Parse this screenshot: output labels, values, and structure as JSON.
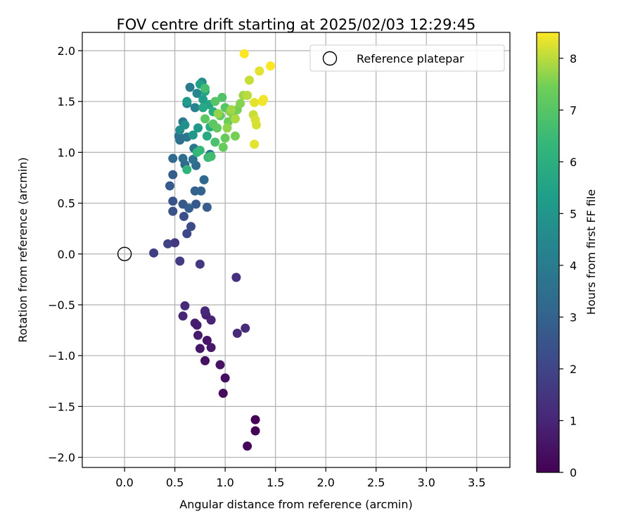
{
  "chart_data": {
    "type": "scatter",
    "title": "FOV centre drift starting at 2025/02/03 12:29:45",
    "xlabel": "Angular distance from reference (arcmin)",
    "ylabel": "Rotation from reference (arcmin)",
    "xlim": [
      -0.42,
      3.83
    ],
    "ylim": [
      -2.1,
      2.18
    ],
    "xticks": [
      "0.0",
      "0.5",
      "1.0",
      "1.5",
      "2.0",
      "2.5",
      "3.0",
      "3.5"
    ],
    "xtick_values": [
      0,
      0.5,
      1.0,
      1.5,
      2.0,
      2.5,
      3.0,
      3.5
    ],
    "yticks": [
      "2.0",
      "1.5",
      "1.0",
      "0.5",
      "0.0",
      "−0.5",
      "−1.0",
      "−1.5",
      "−2.0"
    ],
    "ytick_values": [
      2.0,
      1.5,
      1.0,
      0.5,
      0.0,
      -0.5,
      -1.0,
      -1.5,
      -2.0
    ],
    "grid": true,
    "legend": {
      "placement": "top-right",
      "entries": [
        "Reference platepar"
      ]
    },
    "reference_point": {
      "x": 0.0,
      "y": 0.0
    },
    "colorbar": {
      "label": "Hours from first FF file",
      "colormap": "viridis",
      "range": [
        0,
        8.5
      ],
      "ticks": [
        "0",
        "1",
        "2",
        "3",
        "4",
        "5",
        "6",
        "7",
        "8"
      ],
      "tick_values": [
        0,
        1,
        2,
        3,
        4,
        5,
        6,
        7,
        8
      ]
    },
    "points": [
      [
        1.3,
        -1.63,
        0.05
      ],
      [
        1.3,
        -1.74,
        0.1
      ],
      [
        1.22,
        -1.89,
        0.15
      ],
      [
        0.98,
        -1.37,
        0.3
      ],
      [
        1.0,
        -1.22,
        0.35
      ],
      [
        0.8,
        -1.05,
        0.4
      ],
      [
        0.95,
        -1.09,
        0.5
      ],
      [
        0.82,
        -0.85,
        0.55
      ],
      [
        0.75,
        -0.93,
        0.6
      ],
      [
        0.86,
        -0.92,
        0.65
      ],
      [
        0.73,
        -0.8,
        0.7
      ],
      [
        0.7,
        -0.68,
        0.75
      ],
      [
        0.72,
        -0.7,
        0.8
      ],
      [
        0.8,
        -0.57,
        0.85
      ],
      [
        0.81,
        -0.6,
        0.9
      ],
      [
        0.86,
        -0.65,
        0.95
      ],
      [
        0.58,
        -0.61,
        1.0
      ],
      [
        0.6,
        -0.51,
        1.05
      ],
      [
        0.8,
        -0.56,
        1.1
      ],
      [
        1.12,
        -0.78,
        1.15
      ],
      [
        1.2,
        -0.73,
        1.2
      ],
      [
        1.11,
        -0.23,
        1.3
      ],
      [
        0.75,
        -0.1,
        1.6
      ],
      [
        0.55,
        -0.07,
        1.7
      ],
      [
        0.5,
        0.11,
        1.65
      ],
      [
        0.29,
        0.01,
        1.8
      ],
      [
        0.43,
        0.1,
        1.9
      ],
      [
        0.62,
        0.2,
        2.1
      ],
      [
        0.66,
        0.27,
        2.2
      ],
      [
        0.59,
        0.37,
        2.3
      ],
      [
        0.48,
        0.42,
        2.4
      ],
      [
        0.48,
        0.52,
        2.5
      ],
      [
        0.58,
        0.49,
        2.6
      ],
      [
        0.71,
        0.49,
        2.7
      ],
      [
        0.82,
        0.46,
        2.8
      ],
      [
        0.64,
        0.45,
        2.9
      ],
      [
        0.45,
        0.67,
        2.75
      ],
      [
        0.48,
        0.78,
        2.85
      ],
      [
        0.7,
        0.62,
        3.0
      ],
      [
        0.76,
        0.62,
        3.1
      ],
      [
        0.79,
        0.73,
        3.2
      ],
      [
        0.6,
        0.88,
        3.2
      ],
      [
        0.71,
        0.87,
        3.3
      ],
      [
        0.48,
        0.94,
        3.3
      ],
      [
        0.58,
        0.94,
        3.4
      ],
      [
        0.55,
        1.12,
        3.5
      ],
      [
        0.68,
        0.93,
        3.6
      ],
      [
        0.85,
        0.98,
        3.7
      ],
      [
        0.54,
        1.16,
        3.6
      ],
      [
        0.62,
        1.15,
        3.8
      ],
      [
        0.69,
        1.04,
        3.7
      ],
      [
        0.58,
        1.3,
        3.8
      ],
      [
        0.65,
        1.64,
        4.0
      ],
      [
        0.62,
        1.48,
        4.2
      ],
      [
        0.7,
        1.44,
        4.3
      ],
      [
        0.72,
        1.58,
        4.4
      ],
      [
        0.77,
        1.69,
        4.5
      ],
      [
        0.55,
        1.22,
        4.7
      ],
      [
        0.6,
        1.27,
        4.8
      ],
      [
        0.68,
        1.17,
        5.0
      ],
      [
        0.73,
        1.24,
        5.1
      ],
      [
        0.62,
        1.5,
        5.2
      ],
      [
        0.78,
        1.52,
        5.3
      ],
      [
        0.75,
        1.67,
        5.4
      ],
      [
        0.8,
        1.6,
        5.5
      ],
      [
        0.84,
        1.47,
        5.6
      ],
      [
        0.78,
        1.44,
        5.7
      ],
      [
        0.82,
        1.16,
        5.8
      ],
      [
        0.85,
        1.25,
        5.9
      ],
      [
        0.88,
        1.4,
        6.0
      ],
      [
        0.62,
        0.83,
        6.2
      ],
      [
        0.72,
        1.0,
        6.3
      ],
      [
        0.75,
        1.02,
        6.4
      ],
      [
        0.83,
        0.95,
        6.5
      ],
      [
        0.86,
        0.96,
        6.6
      ],
      [
        0.8,
        1.63,
        6.7
      ],
      [
        0.9,
        1.1,
        6.8
      ],
      [
        0.97,
        1.54,
        6.9
      ],
      [
        0.9,
        1.5,
        7.0
      ],
      [
        1.0,
        1.44,
        7.0
      ],
      [
        0.8,
        1.33,
        7.1
      ],
      [
        0.88,
        1.28,
        7.1
      ],
      [
        0.92,
        1.24,
        7.2
      ],
      [
        0.95,
        1.36,
        7.2
      ],
      [
        0.98,
        1.05,
        7.3
      ],
      [
        1.0,
        1.14,
        7.3
      ],
      [
        1.03,
        1.3,
        7.4
      ],
      [
        1.08,
        1.37,
        7.4
      ],
      [
        1.1,
        1.16,
        7.5
      ],
      [
        1.12,
        1.42,
        7.5
      ],
      [
        1.15,
        1.48,
        7.6
      ],
      [
        1.05,
        1.4,
        7.6
      ],
      [
        0.93,
        1.38,
        7.7
      ],
      [
        1.02,
        1.24,
        7.7
      ],
      [
        1.06,
        1.42,
        7.8
      ],
      [
        1.18,
        1.56,
        7.8
      ],
      [
        1.1,
        1.33,
        7.9
      ],
      [
        1.22,
        1.56,
        8.0
      ],
      [
        1.24,
        1.71,
        8.1
      ],
      [
        1.28,
        1.37,
        8.1
      ],
      [
        1.3,
        1.32,
        8.2
      ],
      [
        1.31,
        1.27,
        8.2
      ],
      [
        1.29,
        1.49,
        8.3
      ],
      [
        1.29,
        1.08,
        8.3
      ],
      [
        1.34,
        1.8,
        8.3
      ],
      [
        1.37,
        1.5,
        8.4
      ],
      [
        1.38,
        1.52,
        8.4
      ],
      [
        1.45,
        1.85,
        8.5
      ],
      [
        1.19,
        1.97,
        8.5
      ]
    ]
  }
}
